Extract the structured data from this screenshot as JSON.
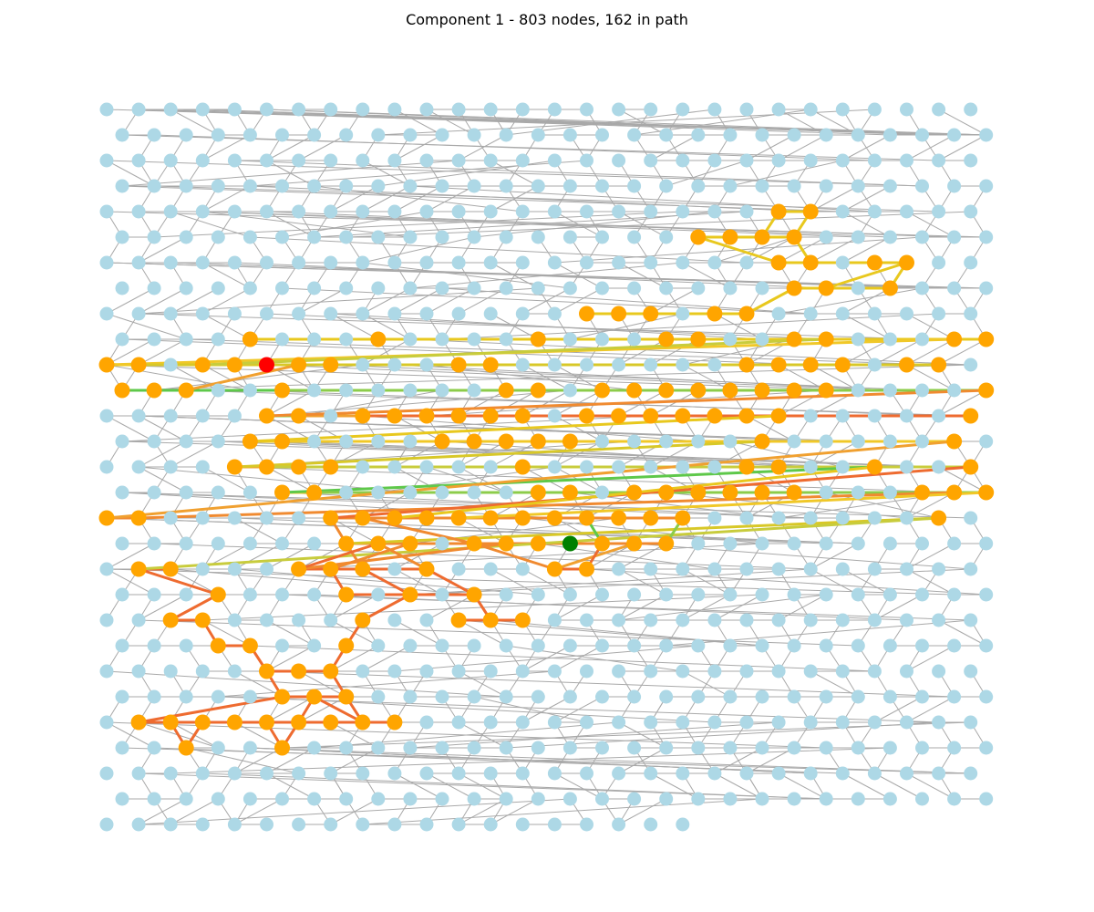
{
  "title": "Component 1 - 803 nodes, 162 in path",
  "colors": {
    "node": "#add8e6",
    "edge": "#a9a9a9",
    "path_node": "#ffa500",
    "start": "#ff0000",
    "end": "#008000",
    "path_colors": [
      "#e8c81e",
      "#f0c828",
      "#d8c828",
      "#c8cc3c",
      "#5ec84a",
      "#8ccc4a",
      "#f0a030",
      "#f08a30",
      "#ee6b30"
    ]
  },
  "chart_data": {
    "type": "graph",
    "node_count": 803,
    "path_count": 162
  }
}
